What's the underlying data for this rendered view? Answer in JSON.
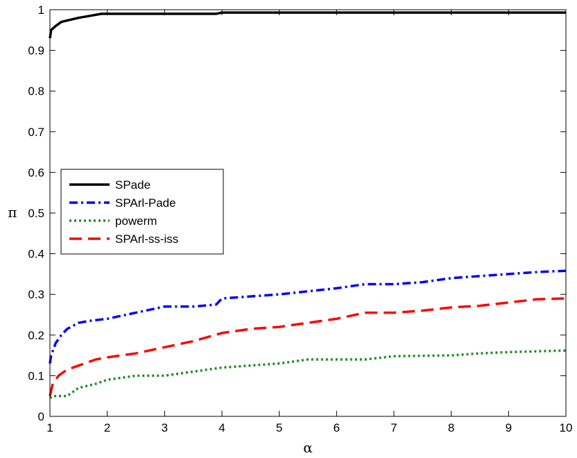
{
  "chart_data": {
    "type": "line",
    "xlabel": "α",
    "ylabel": "π",
    "xlim": [
      1,
      10
    ],
    "ylim": [
      0,
      1
    ],
    "xticks": [
      "1",
      "2",
      "3",
      "4",
      "5",
      "6",
      "7",
      "8",
      "9",
      "10"
    ],
    "yticks": [
      "0",
      "0.1",
      "0.2",
      "0.3",
      "0.4",
      "0.5",
      "0.6",
      "0.7",
      "0.8",
      "0.9",
      "1"
    ],
    "grid": false,
    "legend_position": "center-left",
    "series": [
      {
        "name": "SPade",
        "color": "#000000",
        "style": "solid",
        "points": [
          [
            1,
            0.93
          ],
          [
            1.02,
            0.95
          ],
          [
            1.1,
            0.96
          ],
          [
            1.2,
            0.97
          ],
          [
            1.35,
            0.975
          ],
          [
            1.5,
            0.98
          ],
          [
            1.7,
            0.985
          ],
          [
            1.9,
            0.99
          ],
          [
            3.0,
            0.99
          ],
          [
            3.9,
            0.99
          ],
          [
            4.0,
            0.993
          ],
          [
            6.0,
            0.993
          ],
          [
            8.0,
            0.993
          ],
          [
            10,
            0.993
          ]
        ]
      },
      {
        "name": "SPArl-Pade",
        "color": "#0000ff",
        "style": "dashdot",
        "points": [
          [
            1,
            0.13
          ],
          [
            1.02,
            0.15
          ],
          [
            1.1,
            0.18
          ],
          [
            1.2,
            0.2
          ],
          [
            1.3,
            0.215
          ],
          [
            1.5,
            0.23
          ],
          [
            1.7,
            0.235
          ],
          [
            2.0,
            0.24
          ],
          [
            2.5,
            0.255
          ],
          [
            3.0,
            0.27
          ],
          [
            3.5,
            0.27
          ],
          [
            3.9,
            0.275
          ],
          [
            4.0,
            0.29
          ],
          [
            5.0,
            0.3
          ],
          [
            6.0,
            0.315
          ],
          [
            6.5,
            0.325
          ],
          [
            7.0,
            0.325
          ],
          [
            7.5,
            0.33
          ],
          [
            8.0,
            0.34
          ],
          [
            8.5,
            0.345
          ],
          [
            9.0,
            0.35
          ],
          [
            9.5,
            0.355
          ],
          [
            10,
            0.358
          ]
        ]
      },
      {
        "name": "powerm",
        "color": "#228b22",
        "style": "dotted",
        "points": [
          [
            1,
            0.045
          ],
          [
            1.05,
            0.05
          ],
          [
            1.3,
            0.05
          ],
          [
            1.5,
            0.07
          ],
          [
            1.8,
            0.08
          ],
          [
            2.0,
            0.09
          ],
          [
            2.5,
            0.1
          ],
          [
            3.0,
            0.1
          ],
          [
            3.5,
            0.11
          ],
          [
            4.0,
            0.12
          ],
          [
            4.5,
            0.125
          ],
          [
            5.0,
            0.13
          ],
          [
            5.5,
            0.14
          ],
          [
            6.0,
            0.14
          ],
          [
            6.5,
            0.14
          ],
          [
            7.0,
            0.148
          ],
          [
            8.0,
            0.15
          ],
          [
            8.5,
            0.155
          ],
          [
            9.0,
            0.158
          ],
          [
            10,
            0.162
          ]
        ]
      },
      {
        "name": "SPArl-ss-iss",
        "color": "#ff0000",
        "style": "dashed",
        "points": [
          [
            1,
            0.05
          ],
          [
            1.05,
            0.08
          ],
          [
            1.15,
            0.1
          ],
          [
            1.3,
            0.115
          ],
          [
            1.5,
            0.125
          ],
          [
            1.8,
            0.14
          ],
          [
            2.0,
            0.145
          ],
          [
            2.5,
            0.155
          ],
          [
            3.0,
            0.17
          ],
          [
            3.5,
            0.185
          ],
          [
            4.0,
            0.205
          ],
          [
            4.5,
            0.215
          ],
          [
            5.0,
            0.22
          ],
          [
            5.5,
            0.23
          ],
          [
            6.0,
            0.24
          ],
          [
            6.5,
            0.255
          ],
          [
            7.0,
            0.255
          ],
          [
            7.5,
            0.26
          ],
          [
            8.0,
            0.268
          ],
          [
            8.5,
            0.272
          ],
          [
            9.0,
            0.28
          ],
          [
            9.5,
            0.288
          ],
          [
            10,
            0.29
          ]
        ]
      }
    ]
  }
}
